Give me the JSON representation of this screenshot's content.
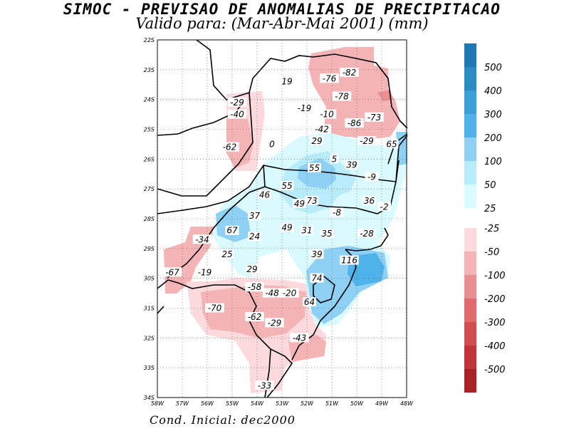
{
  "map": {
    "title_line1": "SIMOC - PREVISAO DE ANOMALIAS DE PRECIPITACAO",
    "title_line2": "Valido para: (Mar-Abr-Mai 2001) (mm)",
    "footer": "Cond. Inicial: dec2000",
    "lat_labels": [
      "22S",
      "23S",
      "24S",
      "25S",
      "26S",
      "27S",
      "28S",
      "29S",
      "30S",
      "31S",
      "32S",
      "33S",
      "34S"
    ],
    "lon_labels": [
      "58W",
      "57W",
      "56W",
      "55W",
      "54W",
      "53W",
      "52W",
      "51W",
      "50W",
      "49W",
      "48W"
    ]
  },
  "legend": {
    "positive": [
      {
        "label": "500",
        "color": "#1f78b4"
      },
      {
        "label": "400",
        "color": "#2b8cc4"
      },
      {
        "label": "300",
        "color": "#3a9fd6"
      },
      {
        "label": "200",
        "color": "#4fb2e8"
      },
      {
        "label": "100",
        "color": "#8fd0f5"
      },
      {
        "label": "50",
        "color": "#b9ecfb"
      },
      {
        "label": "25",
        "color": "#d9fbff"
      }
    ],
    "negative": [
      {
        "label": "-25",
        "color": "#fbd9dc"
      },
      {
        "label": "-50",
        "color": "#f4b4b6"
      },
      {
        "label": "-100",
        "color": "#e98f92"
      },
      {
        "label": "-200",
        "color": "#e06b6d"
      },
      {
        "label": "-300",
        "color": "#d24d4e"
      },
      {
        "label": "-400",
        "color": "#c23536"
      },
      {
        "label": "-500",
        "color": "#ab2225"
      }
    ]
  },
  "station_values": [
    {
      "text": "19",
      "lon": -52.8,
      "lat": -23.4
    },
    {
      "text": "-76",
      "lon": -51.1,
      "lat": -23.3
    },
    {
      "text": "-82",
      "lon": -50.3,
      "lat": -23.1
    },
    {
      "text": "-78",
      "lon": -50.6,
      "lat": -23.9
    },
    {
      "text": "-29",
      "lon": -54.8,
      "lat": -24.1
    },
    {
      "text": "-40",
      "lon": -54.8,
      "lat": -24.5
    },
    {
      "text": "-19",
      "lon": -52.1,
      "lat": -24.3
    },
    {
      "text": "-10",
      "lon": -51.2,
      "lat": -24.5
    },
    {
      "text": "-73",
      "lon": -49.3,
      "lat": -24.6
    },
    {
      "text": "-86",
      "lon": -50.1,
      "lat": -24.8
    },
    {
      "text": "-42",
      "lon": -51.4,
      "lat": -25.0
    },
    {
      "text": "29",
      "lon": -51.6,
      "lat": -25.4
    },
    {
      "text": "-29",
      "lon": -49.6,
      "lat": -25.4
    },
    {
      "text": "65",
      "lon": -48.6,
      "lat": -25.5
    },
    {
      "text": "-62",
      "lon": -55.1,
      "lat": -25.6
    },
    {
      "text": "0",
      "lon": -53.4,
      "lat": -25.5
    },
    {
      "text": "5",
      "lon": -50.9,
      "lat": -26.0
    },
    {
      "text": "55",
      "lon": -51.7,
      "lat": -26.3
    },
    {
      "text": "39",
      "lon": -50.2,
      "lat": -26.2
    },
    {
      "text": "-9",
      "lon": -49.4,
      "lat": -26.6
    },
    {
      "text": "55",
      "lon": -52.8,
      "lat": -26.9
    },
    {
      "text": "46",
      "lon": -53.7,
      "lat": -27.2
    },
    {
      "text": "73",
      "lon": -51.8,
      "lat": -27.4
    },
    {
      "text": "49",
      "lon": -52.3,
      "lat": -27.5
    },
    {
      "text": "36",
      "lon": -49.5,
      "lat": -27.4
    },
    {
      "text": "-2",
      "lon": -48.9,
      "lat": -27.6
    },
    {
      "text": "-8",
      "lon": -50.8,
      "lat": -27.8
    },
    {
      "text": "37",
      "lon": -54.1,
      "lat": -27.9
    },
    {
      "text": "49",
      "lon": -52.8,
      "lat": -28.3
    },
    {
      "text": "31",
      "lon": -52.0,
      "lat": -28.4
    },
    {
      "text": "35",
      "lon": -51.2,
      "lat": -28.5
    },
    {
      "text": "-28",
      "lon": -49.6,
      "lat": -28.5
    },
    {
      "text": "67",
      "lon": -55.0,
      "lat": -28.4
    },
    {
      "text": "24",
      "lon": -54.1,
      "lat": -28.6
    },
    {
      "text": "-34",
      "lon": -56.2,
      "lat": -28.7
    },
    {
      "text": "25",
      "lon": -55.2,
      "lat": -29.2
    },
    {
      "text": "39",
      "lon": -51.6,
      "lat": -29.2
    },
    {
      "text": "116",
      "lon": -50.3,
      "lat": -29.4
    },
    {
      "text": "29",
      "lon": -54.2,
      "lat": -29.7
    },
    {
      "text": "-67",
      "lon": -57.4,
      "lat": -29.8
    },
    {
      "text": "-19",
      "lon": -56.1,
      "lat": -29.8
    },
    {
      "text": "74",
      "lon": -51.6,
      "lat": -30.0
    },
    {
      "text": "-58",
      "lon": -54.1,
      "lat": -30.3
    },
    {
      "text": "-48",
      "lon": -53.4,
      "lat": -30.5
    },
    {
      "text": "-20",
      "lon": -52.7,
      "lat": -30.5
    },
    {
      "text": "64",
      "lon": -51.9,
      "lat": -30.8
    },
    {
      "text": "-70",
      "lon": -55.7,
      "lat": -31.0
    },
    {
      "text": "-62",
      "lon": -54.1,
      "lat": -31.3
    },
    {
      "text": "-29",
      "lon": -53.3,
      "lat": -31.5
    },
    {
      "text": "-43",
      "lon": -52.3,
      "lat": -32.0
    },
    {
      "text": "-33",
      "lon": -53.7,
      "lat": -33.6
    }
  ]
}
